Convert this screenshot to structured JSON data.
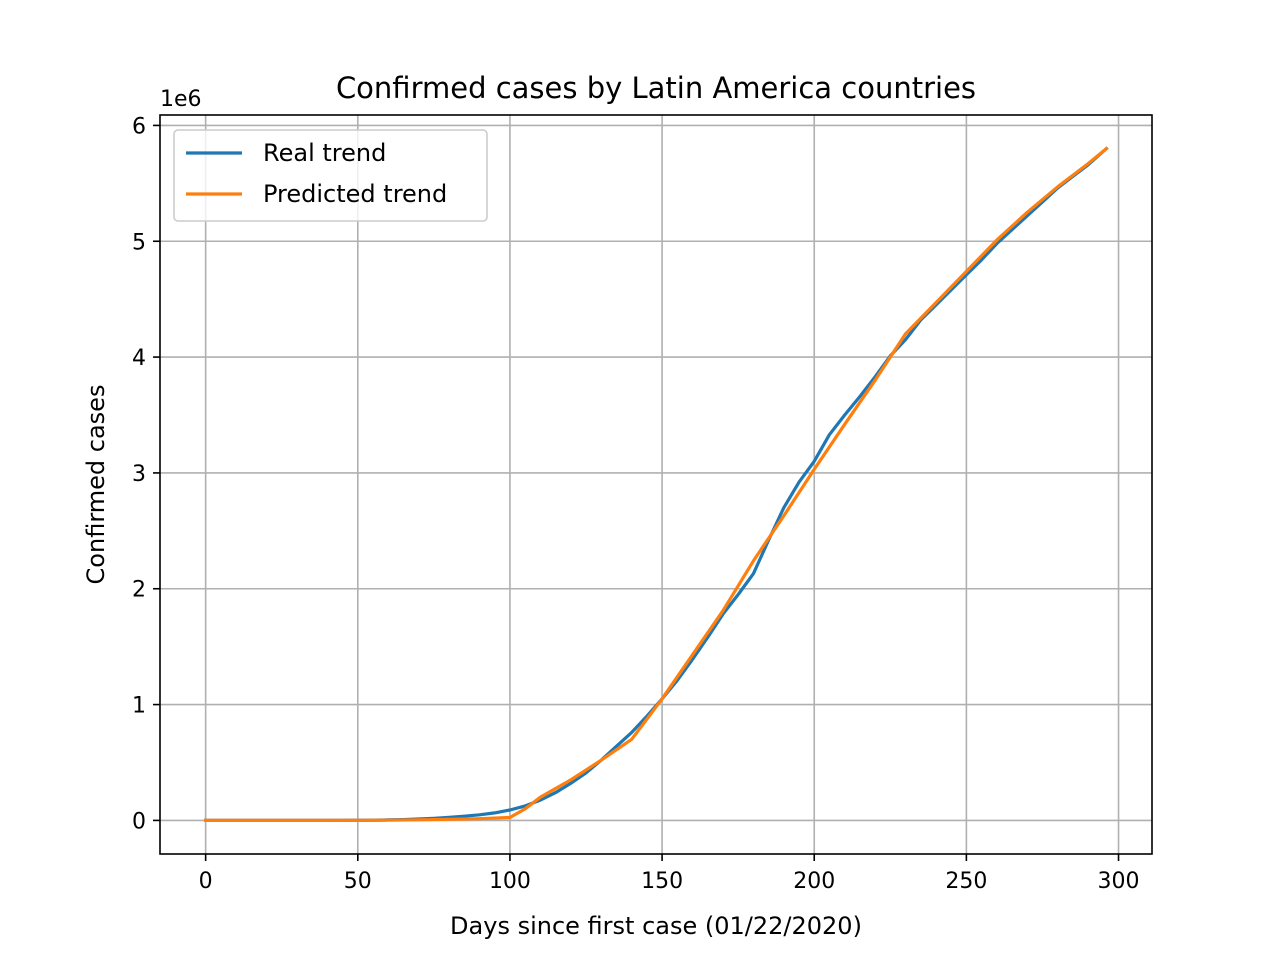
{
  "chart_data": {
    "type": "line",
    "title": "Confirmed cases by Latin America countries",
    "xlabel": "Days since first case (01/22/2020)",
    "ylabel": "Confirmed cases",
    "y_offset_label": "1e6",
    "xlim": [
      -15,
      311
    ],
    "ylim": [
      -290000,
      6090000
    ],
    "x_ticks": [
      0,
      50,
      100,
      150,
      200,
      250,
      300
    ],
    "x_tick_labels": [
      "0",
      "50",
      "100",
      "150",
      "200",
      "250",
      "300"
    ],
    "y_ticks": [
      0,
      1000000,
      2000000,
      3000000,
      4000000,
      5000000,
      6000000
    ],
    "y_tick_labels": [
      "0",
      "1",
      "2",
      "3",
      "4",
      "5",
      "6"
    ],
    "grid": true,
    "legend_position": "upper-left",
    "series": [
      {
        "name": "Real trend",
        "color": "#1f77b4",
        "x": [
          0,
          20,
          40,
          55,
          60,
          65,
          70,
          75,
          80,
          85,
          90,
          95,
          100,
          105,
          110,
          115,
          120,
          125,
          130,
          135,
          140,
          145,
          150,
          155,
          160,
          165,
          170,
          175,
          180,
          185,
          190,
          195,
          200,
          205,
          210,
          215,
          220,
          225,
          230,
          235,
          240,
          245,
          250,
          255,
          260,
          265,
          270,
          275,
          280,
          285,
          290,
          296
        ],
        "y": [
          0,
          0,
          0,
          2000,
          4000,
          7000,
          12000,
          18000,
          26000,
          36000,
          48000,
          65000,
          90000,
          125000,
          175000,
          240000,
          320000,
          410000,
          520000,
          640000,
          760000,
          900000,
          1050000,
          1210000,
          1390000,
          1580000,
          1780000,
          1950000,
          2130000,
          2420000,
          2700000,
          2920000,
          3100000,
          3330000,
          3500000,
          3660000,
          3830000,
          4010000,
          4150000,
          4320000,
          4450000,
          4580000,
          4710000,
          4840000,
          4980000,
          5100000,
          5220000,
          5340000,
          5460000,
          5560000,
          5660000,
          5800000
        ]
      },
      {
        "name": "Predicted trend",
        "color": "#ff7f0e",
        "x": [
          0,
          50,
          60,
          70,
          80,
          90,
          100,
          105,
          110,
          120,
          130,
          140,
          150,
          160,
          170,
          180,
          190,
          200,
          210,
          220,
          230,
          240,
          250,
          260,
          270,
          280,
          290,
          296
        ],
        "y": [
          0,
          0,
          2000,
          5000,
          10000,
          15000,
          25000,
          100000,
          200000,
          350000,
          520000,
          700000,
          1050000,
          1430000,
          1810000,
          2240000,
          2630000,
          3030000,
          3420000,
          3800000,
          4200000,
          4470000,
          4740000,
          5010000,
          5250000,
          5470000,
          5670000,
          5800000
        ]
      }
    ]
  }
}
